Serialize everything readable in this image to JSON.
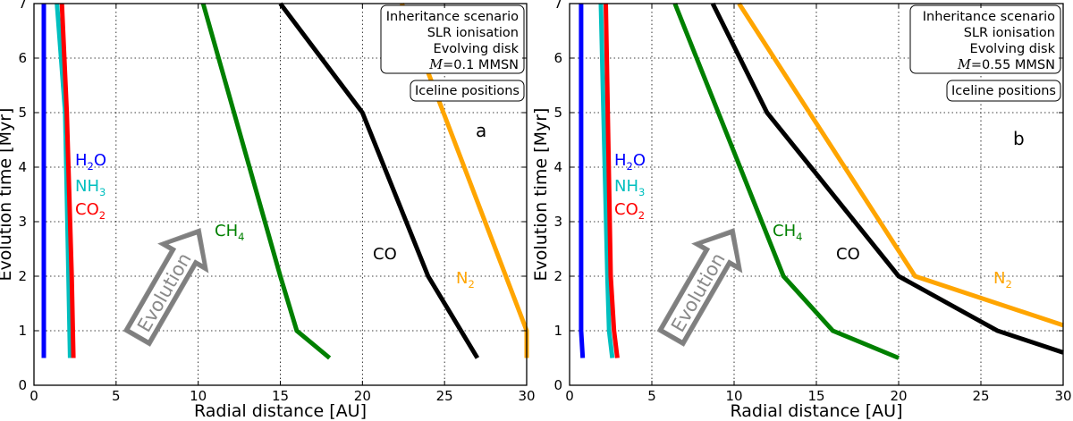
{
  "chart_data": [
    {
      "type": "line",
      "panel_label": "a",
      "xlabel": "Radial distance [AU]",
      "ylabel": "Evolution time [Myr]",
      "xlim": [
        0,
        30
      ],
      "ylim": [
        0,
        7
      ],
      "xticks": [
        "0",
        "5",
        "10",
        "15",
        "20",
        "25",
        "30"
      ],
      "yticks": [
        "0",
        "1",
        "2",
        "3",
        "4",
        "5",
        "6",
        "7"
      ],
      "grid": true,
      "legend_lines": [
        "Inheritance scenario",
        "SLR ionisation",
        "Evolving disk",
        "=0.1 MMSN"
      ],
      "legend_symbol": "M",
      "legend_title": "Iceline positions",
      "arrow_label": "Evolution",
      "series": [
        {
          "name": "H2O",
          "label_main": "H",
          "label_sub": "2",
          "label_tail": "O",
          "color": "#0000ff",
          "x": [
            0.6,
            0.6
          ],
          "y": [
            0.5,
            7
          ]
        },
        {
          "name": "NH3",
          "label_main": "NH",
          "label_sub": "3",
          "label_tail": "",
          "color": "#00bfbf",
          "x": [
            2.2,
            2.1,
            1.9,
            1.4
          ],
          "y": [
            0.5,
            2.0,
            5.0,
            7
          ]
        },
        {
          "name": "CO2",
          "label_main": "CO",
          "label_sub": "2",
          "label_tail": "",
          "color": "#ff0000",
          "x": [
            2.4,
            2.3,
            2.0,
            1.7
          ],
          "y": [
            0.5,
            2.0,
            5.0,
            7
          ]
        },
        {
          "name": "CH4",
          "label_main": "CH",
          "label_sub": "4",
          "label_tail": "",
          "color": "#008000",
          "x": [
            18,
            16,
            15,
            10.3
          ],
          "y": [
            0.5,
            1.0,
            2.0,
            7
          ]
        },
        {
          "name": "CO",
          "label_main": "CO",
          "label_sub": "",
          "label_tail": "",
          "color": "#000000",
          "x": [
            27,
            24,
            20,
            15
          ],
          "y": [
            0.5,
            2.0,
            5.0,
            7
          ]
        },
        {
          "name": "N2",
          "label_main": "N",
          "label_sub": "2",
          "label_tail": "",
          "color": "#ffa500",
          "x": [
            30,
            30,
            22.4
          ],
          "y": [
            0.5,
            1.0,
            7
          ]
        }
      ]
    },
    {
      "type": "line",
      "panel_label": "b",
      "xlabel": "Radial distance [AU]",
      "ylabel": "Evolution time [Myr]",
      "xlim": [
        0,
        30
      ],
      "ylim": [
        0,
        7
      ],
      "xticks": [
        "0",
        "5",
        "10",
        "15",
        "20",
        "25",
        "30"
      ],
      "yticks": [
        "0",
        "1",
        "2",
        "3",
        "4",
        "5",
        "6",
        "7"
      ],
      "grid": true,
      "legend_lines": [
        "Inheritance scenario",
        "SLR ionisation",
        "Evolving disk",
        "=0.55 MMSN"
      ],
      "legend_symbol": "M",
      "legend_title": "Iceline positions",
      "arrow_label": "Evolution",
      "series": [
        {
          "name": "H2O",
          "label_main": "H",
          "label_sub": "2",
          "label_tail": "O",
          "color": "#0000ff",
          "x": [
            0.8,
            0.7,
            0.7
          ],
          "y": [
            0.5,
            1.0,
            7
          ]
        },
        {
          "name": "NH3",
          "label_main": "NH",
          "label_sub": "3",
          "label_tail": "",
          "color": "#00bfbf",
          "x": [
            2.6,
            2.4,
            2.3,
            1.9
          ],
          "y": [
            0.5,
            1.0,
            2.0,
            7
          ]
        },
        {
          "name": "CO2",
          "label_main": "CO",
          "label_sub": "2",
          "label_tail": "",
          "color": "#ff0000",
          "x": [
            2.9,
            2.7,
            2.5,
            2.2
          ],
          "y": [
            0.5,
            1.0,
            2.0,
            7
          ]
        },
        {
          "name": "CH4",
          "label_main": "CH",
          "label_sub": "4",
          "label_tail": "",
          "color": "#008000",
          "x": [
            20,
            16,
            13,
            6.4
          ],
          "y": [
            0.5,
            1.0,
            2.0,
            7
          ]
        },
        {
          "name": "CO",
          "label_main": "CO",
          "label_sub": "",
          "label_tail": "",
          "color": "#000000",
          "x": [
            30,
            26,
            20,
            12,
            8.7
          ],
          "y": [
            0.6,
            1.0,
            2.0,
            5.0,
            7
          ]
        },
        {
          "name": "N2",
          "label_main": "N",
          "label_sub": "2",
          "label_tail": "",
          "color": "#ffa500",
          "x": [
            30,
            21,
            10.3
          ],
          "y": [
            1.1,
            2.0,
            7
          ]
        }
      ]
    }
  ]
}
